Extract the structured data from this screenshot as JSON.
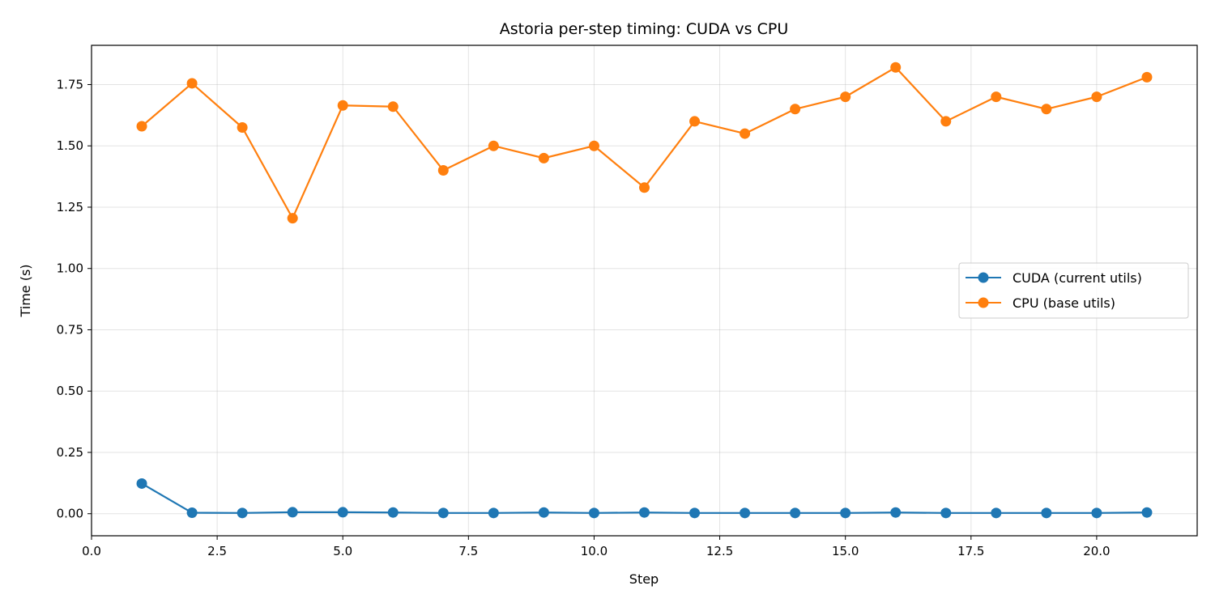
{
  "chart_data": {
    "type": "line",
    "title": "Astoria per-step timing: CUDA vs CPU",
    "xlabel": "Step",
    "ylabel": "Time (s)",
    "xlim": [
      0,
      22
    ],
    "ylim": [
      -0.09,
      1.91
    ],
    "xticks": [
      0.0,
      2.5,
      5.0,
      7.5,
      10.0,
      12.5,
      15.0,
      17.5,
      20.0
    ],
    "xtick_labels": [
      "0.0",
      "2.5",
      "5.0",
      "7.5",
      "10.0",
      "12.5",
      "15.0",
      "17.5",
      "20.0"
    ],
    "yticks": [
      0.0,
      0.25,
      0.5,
      0.75,
      1.0,
      1.25,
      1.5,
      1.75
    ],
    "ytick_labels": [
      "0.00",
      "0.25",
      "0.50",
      "0.75",
      "1.00",
      "1.25",
      "1.50",
      "1.75"
    ],
    "grid": true,
    "legend_position": "center-right",
    "x": [
      1,
      2,
      3,
      4,
      5,
      6,
      7,
      8,
      9,
      10,
      11,
      12,
      13,
      14,
      15,
      16,
      17,
      18,
      19,
      20,
      21
    ],
    "series": [
      {
        "name": "CUDA (current utils)",
        "color": "#1f77b4",
        "values": [
          0.123,
          0.004,
          0.003,
          0.006,
          0.006,
          0.005,
          0.003,
          0.003,
          0.005,
          0.003,
          0.005,
          0.003,
          0.003,
          0.003,
          0.003,
          0.005,
          0.003,
          0.003,
          0.003,
          0.003,
          0.005
        ]
      },
      {
        "name": "CPU (base utils)",
        "color": "#ff7f0e",
        "values": [
          1.58,
          1.755,
          1.575,
          1.205,
          1.665,
          1.66,
          1.4,
          1.5,
          1.45,
          1.5,
          1.33,
          1.6,
          1.55,
          1.65,
          1.7,
          1.82,
          1.6,
          1.7,
          1.65,
          1.7,
          1.78
        ]
      }
    ]
  }
}
